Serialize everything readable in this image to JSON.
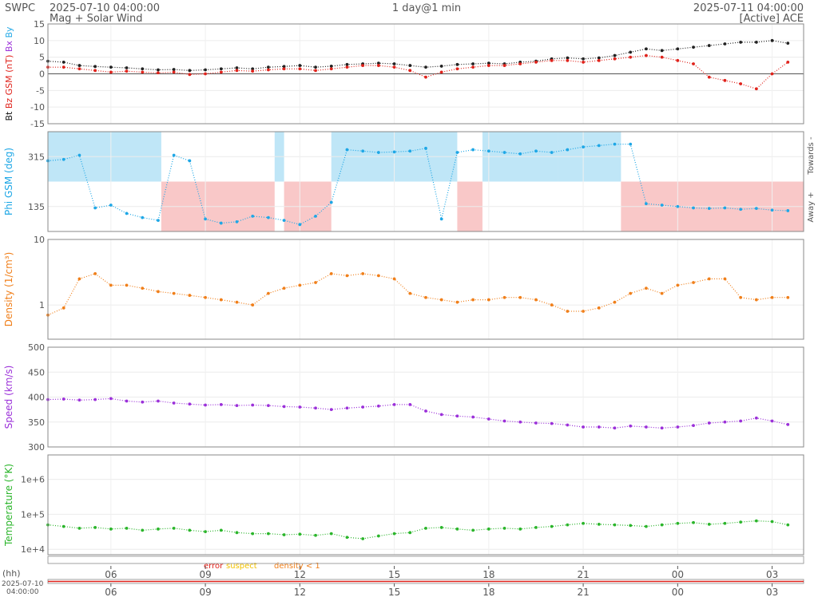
{
  "header": {
    "org": "SWPC",
    "start_time": "2025-07-10 04:00:00",
    "subtitle": "Mag + Solar Wind",
    "span": "1 day@1 min",
    "end_time": "2025-07-11 04:00:00",
    "source": "[Active] ACE"
  },
  "time_axis": {
    "start_hours": 4,
    "end_hours": 28,
    "tick_hours": [
      6,
      9,
      12,
      15,
      18,
      21,
      24,
      27
    ],
    "tick_labels": [
      "06",
      "09",
      "12",
      "15",
      "18",
      "21",
      "00",
      "03"
    ],
    "unit_label": "(hh)",
    "start_date_label": "2025-07-10",
    "start_clock_label": "04:00:00"
  },
  "flags_legend": {
    "error": "error",
    "suspect": "suspect",
    "density": "density < 1",
    "error_color": "#e0231c",
    "suspect_color": "#f2c200",
    "density_color": "#f07f1a"
  },
  "chart_data": [
    {
      "type": "scatter",
      "id": "mag",
      "ylim": [
        -15,
        15
      ],
      "yticks": [
        15,
        10,
        5,
        0,
        -5,
        -10,
        -15
      ],
      "ytick_labels": [
        "15",
        "10",
        "5",
        "0",
        "-5",
        "-10",
        "-15"
      ],
      "ylabels": [
        {
          "text": "Bt",
          "color": "#111111"
        },
        {
          "text": "Bz GSM (nT)",
          "color": "#e0231c"
        },
        {
          "text": "Bx",
          "color": "#9b30d9"
        },
        {
          "text": "By",
          "color": "#1ea7e6"
        }
      ],
      "series": [
        {
          "name": "Bt",
          "color": "#222222",
          "x": [
            4.0,
            4.5,
            5.0,
            5.5,
            6.0,
            6.5,
            7.0,
            7.5,
            8.0,
            8.5,
            9.0,
            9.5,
            10.0,
            10.5,
            11.0,
            11.5,
            12.0,
            12.5,
            13.0,
            13.5,
            14.0,
            14.5,
            15.0,
            15.5,
            16.0,
            16.5,
            17.0,
            17.5,
            18.0,
            18.5,
            19.0,
            19.5,
            20.0,
            20.5,
            21.0,
            21.5,
            22.0,
            22.5,
            23.0,
            23.5,
            24.0,
            24.5,
            25.0,
            25.5,
            26.0,
            26.5,
            27.0,
            27.5
          ],
          "y": [
            3.8,
            3.5,
            2.5,
            2.2,
            2.0,
            1.8,
            1.5,
            1.2,
            1.3,
            1.0,
            1.2,
            1.5,
            1.8,
            1.5,
            2.0,
            2.2,
            2.5,
            2.0,
            2.3,
            2.8,
            3.0,
            3.2,
            3.0,
            2.5,
            2.0,
            2.3,
            2.8,
            3.0,
            3.2,
            3.0,
            3.5,
            3.8,
            4.5,
            4.8,
            4.5,
            4.8,
            5.5,
            6.5,
            7.5,
            7.0,
            7.5,
            8.0,
            8.5,
            9.0,
            9.5,
            9.5,
            10.0,
            9.2
          ]
        },
        {
          "name": "Bz GSM",
          "color": "#e0231c",
          "x": [
            4.0,
            4.5,
            5.0,
            5.5,
            6.0,
            6.5,
            7.0,
            7.5,
            8.0,
            8.5,
            9.0,
            9.5,
            10.0,
            10.5,
            11.0,
            11.5,
            12.0,
            12.5,
            13.0,
            13.5,
            14.0,
            14.5,
            15.0,
            15.5,
            16.0,
            16.5,
            17.0,
            17.5,
            18.0,
            18.5,
            19.0,
            19.5,
            20.0,
            20.5,
            21.0,
            21.5,
            22.0,
            22.5,
            23.0,
            23.5,
            24.0,
            24.5,
            25.0,
            25.5,
            26.0,
            26.5,
            27.0,
            27.5
          ],
          "y": [
            2.0,
            2.0,
            1.5,
            1.0,
            0.5,
            0.8,
            0.5,
            0.3,
            0.5,
            -0.2,
            0.0,
            0.5,
            1.0,
            0.8,
            1.2,
            1.5,
            1.5,
            1.0,
            1.5,
            2.0,
            2.5,
            2.5,
            2.0,
            1.0,
            -1.0,
            0.5,
            1.5,
            2.0,
            2.5,
            2.5,
            3.0,
            3.5,
            4.0,
            4.0,
            3.5,
            4.0,
            4.5,
            5.0,
            5.5,
            5.0,
            4.0,
            3.0,
            -1.0,
            -2.0,
            -3.0,
            -4.5,
            0.0,
            3.5
          ]
        }
      ]
    },
    {
      "type": "scatter",
      "id": "phi",
      "ylim": [
        45,
        405
      ],
      "yticks": [
        315,
        135
      ],
      "ytick_labels": [
        "315",
        "135"
      ],
      "ylabel": "Phi GSM (deg)",
      "ylabel_color": "#1ea7e6",
      "right_labels": [
        "Towards -",
        "Away +"
      ],
      "towards_color": "#bfe6f7",
      "away_color": "#f9c8c8",
      "sector_bands": [
        {
          "start": 4.0,
          "end": 7.6,
          "sector": "towards"
        },
        {
          "start": 7.6,
          "end": 11.2,
          "sector": "away"
        },
        {
          "start": 11.2,
          "end": 11.5,
          "sector": "towards"
        },
        {
          "start": 11.5,
          "end": 13.0,
          "sector": "away"
        },
        {
          "start": 13.0,
          "end": 17.0,
          "sector": "towards"
        },
        {
          "start": 17.0,
          "end": 17.8,
          "sector": "away"
        },
        {
          "start": 17.8,
          "end": 20.2,
          "sector": "towards"
        },
        {
          "start": 20.2,
          "end": 22.2,
          "sector": "towards"
        },
        {
          "start": 22.2,
          "end": 28.0,
          "sector": "away"
        }
      ],
      "series": [
        {
          "name": "Phi GSM",
          "color": "#1ea7e6",
          "x": [
            4.0,
            4.5,
            5.0,
            5.5,
            6.0,
            6.5,
            7.0,
            7.5,
            8.0,
            8.5,
            9.0,
            9.5,
            10.0,
            10.5,
            11.0,
            11.5,
            12.0,
            12.5,
            13.0,
            13.5,
            14.0,
            14.5,
            15.0,
            15.5,
            16.0,
            16.5,
            17.0,
            17.5,
            18.0,
            18.5,
            19.0,
            19.5,
            20.0,
            20.5,
            21.0,
            21.5,
            22.0,
            22.5,
            23.0,
            23.5,
            24.0,
            24.5,
            25.0,
            25.5,
            26.0,
            26.5,
            27.0,
            27.5
          ],
          "y": [
            300,
            305,
            320,
            130,
            140,
            110,
            95,
            85,
            320,
            300,
            90,
            75,
            80,
            100,
            95,
            85,
            70,
            100,
            150,
            340,
            335,
            330,
            332,
            335,
            345,
            90,
            330,
            340,
            335,
            330,
            325,
            335,
            330,
            340,
            350,
            355,
            360,
            360,
            145,
            140,
            135,
            130,
            128,
            130,
            125,
            128,
            122,
            120
          ]
        }
      ]
    },
    {
      "type": "scatter",
      "id": "density",
      "yscale": "log",
      "ylim": [
        0.3,
        10
      ],
      "yticks": [
        10,
        1
      ],
      "ytick_labels": [
        "10",
        "1"
      ],
      "ylabel": "Density (1/cm³)",
      "ylabel_color": "#f07f1a",
      "series": [
        {
          "name": "Density",
          "color": "#f07f1a",
          "x": [
            4.0,
            4.5,
            5.0,
            5.5,
            6.0,
            6.5,
            7.0,
            7.5,
            8.0,
            8.5,
            9.0,
            9.5,
            10.0,
            10.5,
            11.0,
            11.5,
            12.0,
            12.5,
            13.0,
            13.5,
            14.0,
            14.5,
            15.0,
            15.5,
            16.0,
            16.5,
            17.0,
            17.5,
            18.0,
            18.5,
            19.0,
            19.5,
            20.0,
            20.5,
            21.0,
            21.5,
            22.0,
            22.5,
            23.0,
            23.5,
            24.0,
            24.5,
            25.0,
            25.5,
            26.0,
            26.5,
            27.0,
            27.5
          ],
          "y": [
            0.7,
            0.9,
            2.5,
            3.0,
            2.0,
            2.0,
            1.8,
            1.6,
            1.5,
            1.4,
            1.3,
            1.2,
            1.1,
            1.0,
            1.5,
            1.8,
            2.0,
            2.2,
            3.0,
            2.8,
            3.0,
            2.8,
            2.5,
            1.5,
            1.3,
            1.2,
            1.1,
            1.2,
            1.2,
            1.3,
            1.3,
            1.2,
            1.0,
            0.8,
            0.8,
            0.9,
            1.1,
            1.5,
            1.8,
            1.5,
            2.0,
            2.2,
            2.5,
            2.5,
            1.3,
            1.2,
            1.3,
            1.3
          ]
        }
      ]
    },
    {
      "type": "scatter",
      "id": "speed",
      "ylim": [
        300,
        500
      ],
      "yticks": [
        500,
        450,
        400,
        350,
        300
      ],
      "ytick_labels": [
        "500",
        "450",
        "400",
        "350",
        "300"
      ],
      "ylabel": "Speed (km/s)",
      "ylabel_color": "#9b30d9",
      "series": [
        {
          "name": "Speed",
          "color": "#9b30d9",
          "x": [
            4.0,
            4.5,
            5.0,
            5.5,
            6.0,
            6.5,
            7.0,
            7.5,
            8.0,
            8.5,
            9.0,
            9.5,
            10.0,
            10.5,
            11.0,
            11.5,
            12.0,
            12.5,
            13.0,
            13.5,
            14.0,
            14.5,
            15.0,
            15.5,
            16.0,
            16.5,
            17.0,
            17.5,
            18.0,
            18.5,
            19.0,
            19.5,
            20.0,
            20.5,
            21.0,
            21.5,
            22.0,
            22.5,
            23.0,
            23.5,
            24.0,
            24.5,
            25.0,
            25.5,
            26.0,
            26.5,
            27.0,
            27.5
          ],
          "y": [
            395,
            396,
            394,
            395,
            397,
            392,
            390,
            392,
            388,
            386,
            384,
            385,
            383,
            384,
            383,
            381,
            380,
            378,
            375,
            378,
            380,
            382,
            385,
            385,
            372,
            365,
            362,
            360,
            356,
            352,
            350,
            348,
            347,
            344,
            340,
            340,
            338,
            342,
            340,
            338,
            340,
            343,
            348,
            350,
            352,
            358,
            352,
            345
          ]
        }
      ]
    },
    {
      "type": "scatter",
      "id": "temperature",
      "yscale": "log",
      "ylim": [
        7000,
        5000000
      ],
      "yticks": [
        1000000,
        100000,
        10000
      ],
      "ytick_labels": [
        "1e+6",
        "1e+5",
        "1e+4"
      ],
      "ylabel": "Temperature (°K)",
      "ylabel_color": "#2bb52b",
      "series": [
        {
          "name": "Temperature",
          "color": "#2bb52b",
          "x": [
            4.0,
            4.5,
            5.0,
            5.5,
            6.0,
            6.5,
            7.0,
            7.5,
            8.0,
            8.5,
            9.0,
            9.5,
            10.0,
            10.5,
            11.0,
            11.5,
            12.0,
            12.5,
            13.0,
            13.5,
            14.0,
            14.5,
            15.0,
            15.5,
            16.0,
            16.5,
            17.0,
            17.5,
            18.0,
            18.5,
            19.0,
            19.5,
            20.0,
            20.5,
            21.0,
            21.5,
            22.0,
            22.5,
            23.0,
            23.5,
            24.0,
            24.5,
            25.0,
            25.5,
            26.0,
            26.5,
            27.0,
            27.5
          ],
          "y": [
            50000,
            45000,
            40000,
            42000,
            38000,
            40000,
            35000,
            38000,
            40000,
            35000,
            32000,
            35000,
            30000,
            28000,
            28000,
            26000,
            27000,
            25000,
            28000,
            22000,
            20000,
            24000,
            28000,
            30000,
            40000,
            42000,
            38000,
            35000,
            38000,
            40000,
            38000,
            42000,
            45000,
            50000,
            55000,
            52000,
            50000,
            48000,
            45000,
            50000,
            55000,
            58000,
            52000,
            55000,
            60000,
            65000,
            62000,
            50000
          ]
        }
      ]
    }
  ]
}
